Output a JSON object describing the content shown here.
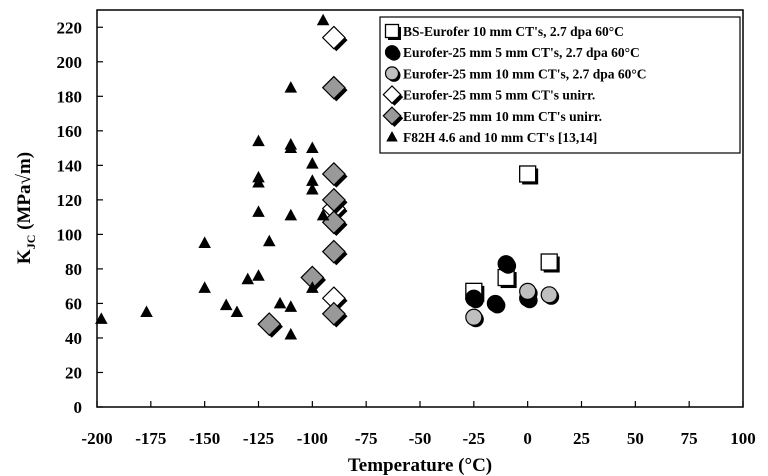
{
  "chart_data": {
    "type": "scatter",
    "xlabel": "Temperature (°C)",
    "ylabel": "K_JC (MPa√m)",
    "ylabel_main": "K",
    "ylabel_sub": "JC",
    "ylabel_rest": " (MPa√m)",
    "xlim": [
      -200,
      100
    ],
    "ylim": [
      0,
      230
    ],
    "x_ticks": [
      -200,
      -175,
      -150,
      -125,
      -100,
      -75,
      -50,
      -25,
      0,
      25,
      50,
      75,
      100
    ],
    "y_ticks": [
      0,
      20,
      40,
      60,
      80,
      100,
      120,
      140,
      160,
      180,
      200,
      220
    ],
    "grid": false,
    "legend_position": "top-right",
    "series": [
      {
        "name": "BS-Eurofer 10 mm CT's, 2.7 dpa 60°C",
        "marker": "open-square",
        "color": "#ffffff",
        "points": [
          [
            -25,
            67
          ],
          [
            -10,
            75
          ],
          [
            0,
            135
          ],
          [
            10,
            84
          ]
        ]
      },
      {
        "name": "Eurofer-25 mm 5 mm CT's, 2.7 dpa 60°C",
        "marker": "filled-circle",
        "color": "#000000",
        "points": [
          [
            -25,
            63
          ],
          [
            -15,
            60
          ],
          [
            -10,
            83
          ],
          [
            0,
            63
          ]
        ]
      },
      {
        "name": "Eurofer-25 mm 10 mm CT's, 2.7 dpa 60°C",
        "marker": "grey-circle",
        "color": "#bfbfbf",
        "points": [
          [
            -25,
            52
          ],
          [
            0,
            67
          ],
          [
            10,
            65
          ]
        ]
      },
      {
        "name": "Eurofer-25 mm 5 mm CT's unirr.",
        "marker": "open-diamond",
        "color": "#ffffff",
        "points": [
          [
            -90,
            214
          ],
          [
            -90,
            115
          ],
          [
            -90,
            63
          ]
        ]
      },
      {
        "name": "Eurofer-25 mm 10 mm CT's unirr.",
        "marker": "grey-diamond",
        "color": "#999999",
        "points": [
          [
            -90,
            185
          ],
          [
            -90,
            135
          ],
          [
            -90,
            120
          ],
          [
            -90,
            107
          ],
          [
            -90,
            90
          ],
          [
            -90,
            54
          ],
          [
            -100,
            75
          ],
          [
            -120,
            48
          ]
        ]
      },
      {
        "name": "F82H 4.6 and 10 mm CT's [13,14]",
        "marker": "filled-triangle",
        "color": "#000000",
        "points": [
          [
            -198,
            51
          ],
          [
            -177,
            55
          ],
          [
            -150,
            95
          ],
          [
            -150,
            69
          ],
          [
            -140,
            59
          ],
          [
            -135,
            55
          ],
          [
            -130,
            74
          ],
          [
            -125,
            154
          ],
          [
            -125,
            133
          ],
          [
            -125,
            130
          ],
          [
            -125,
            113
          ],
          [
            -125,
            76
          ],
          [
            -120,
            96
          ],
          [
            -115,
            60
          ],
          [
            -110,
            185
          ],
          [
            -110,
            152
          ],
          [
            -110,
            150
          ],
          [
            -110,
            111
          ],
          [
            -110,
            58
          ],
          [
            -110,
            42
          ],
          [
            -100,
            150
          ],
          [
            -100,
            141
          ],
          [
            -100,
            131
          ],
          [
            -100,
            126
          ],
          [
            -100,
            69
          ],
          [
            -95,
            111
          ],
          [
            -95,
            224
          ]
        ]
      }
    ]
  }
}
